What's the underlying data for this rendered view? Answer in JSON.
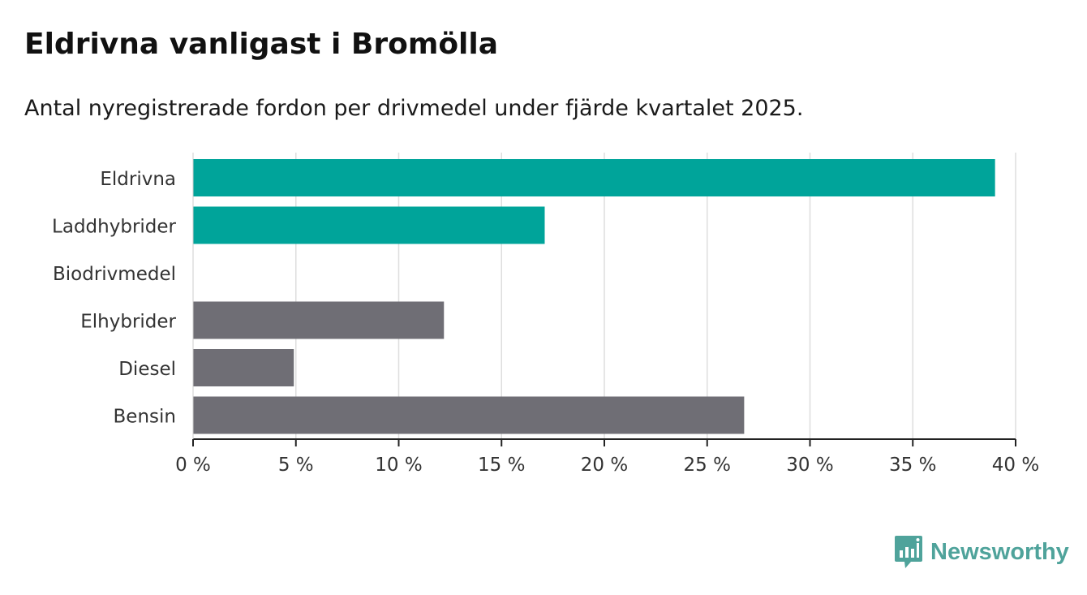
{
  "chart_data": {
    "type": "bar",
    "orientation": "horizontal",
    "title": "Eldrivna vanligast i Bromölla",
    "subtitle": "Antal nyregistrerade fordon per drivmedel under fjärde kvartalet 2025.",
    "categories": [
      "Eldrivna",
      "Laddhybrider",
      "Biodrivmedel",
      "Elhybrider",
      "Diesel",
      "Bensin"
    ],
    "values": [
      39.0,
      17.1,
      0,
      12.2,
      4.9,
      26.8
    ],
    "colors": [
      "#00a49a",
      "#00a49a",
      "#00a49a",
      "#6f6e75",
      "#6f6e75",
      "#6f6e75"
    ],
    "xlim": [
      0,
      40
    ],
    "ticks": [
      0,
      5,
      10,
      15,
      20,
      25,
      30,
      35,
      40
    ],
    "tick_labels": [
      "0 %",
      "5 %",
      "10 %",
      "15 %",
      "20 %",
      "25 %",
      "30 %",
      "35 %",
      "40 %"
    ],
    "xlabel": "",
    "ylabel": "",
    "grid": true
  },
  "branding": {
    "name": "Newsworthy",
    "color": "#4fa39b",
    "icon": "newsworthy-logo-icon"
  }
}
